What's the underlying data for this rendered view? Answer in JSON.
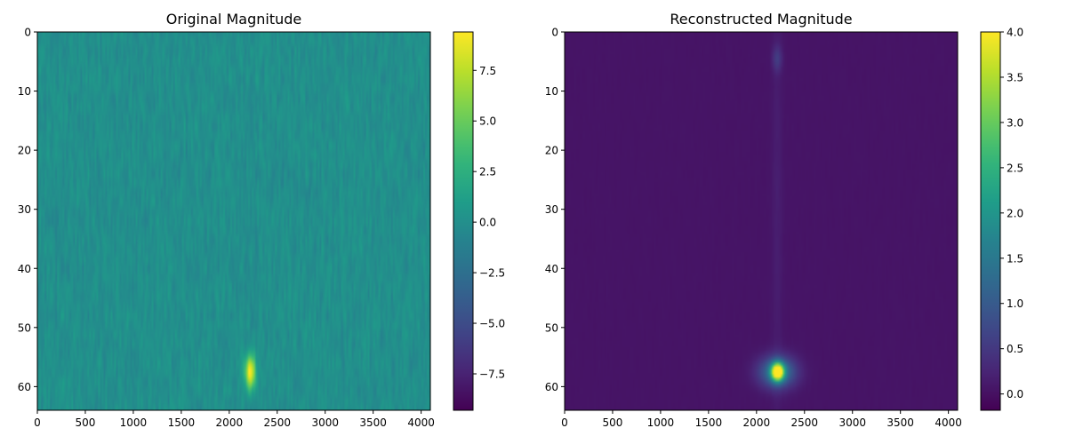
{
  "chart_data": [
    {
      "type": "heatmap",
      "title": "Original Magnitude",
      "xlabel": "",
      "ylabel": "",
      "x_range": [
        0,
        4096
      ],
      "y_range": [
        0,
        64
      ],
      "y_inverted": true,
      "x_ticks": [
        0,
        500,
        1000,
        1500,
        2000,
        2500,
        3000,
        3500,
        4000
      ],
      "y_ticks": [
        0,
        10,
        20,
        30,
        40,
        50,
        60
      ],
      "colormap": "viridis",
      "color_range": [
        -9.3,
        9.4
      ],
      "colorbar_ticks": [
        {
          "value": -7.5,
          "label": "−7.5"
        },
        {
          "value": -5.0,
          "label": "−5.0"
        },
        {
          "value": -2.5,
          "label": "−2.5"
        },
        {
          "value": 0.0,
          "label": "0.0"
        },
        {
          "value": 2.5,
          "label": "2.5"
        },
        {
          "value": 5.0,
          "label": "5.0"
        },
        {
          "value": 7.5,
          "label": "7.5"
        }
      ],
      "background_level": 0.0,
      "noise_amplitude": 1.2,
      "features": [
        {
          "x": 2220,
          "y": 57.5,
          "peak": 9.4,
          "width_x": 40,
          "width_y": 2.0
        }
      ]
    },
    {
      "type": "heatmap",
      "title": "Reconstructed Magnitude",
      "xlabel": "",
      "ylabel": "",
      "x_range": [
        0,
        4096
      ],
      "y_range": [
        0,
        64
      ],
      "y_inverted": true,
      "x_ticks": [
        0,
        500,
        1000,
        1500,
        2000,
        2500,
        3000,
        3500,
        4000
      ],
      "y_ticks": [
        0,
        10,
        20,
        30,
        40,
        50,
        60
      ],
      "colormap": "viridis",
      "color_range": [
        -0.18,
        4.0
      ],
      "colorbar_ticks": [
        {
          "value": 0.0,
          "label": "0.0"
        },
        {
          "value": 0.5,
          "label": "0.5"
        },
        {
          "value": 1.0,
          "label": "1.0"
        },
        {
          "value": 1.5,
          "label": "1.5"
        },
        {
          "value": 2.0,
          "label": "2.0"
        },
        {
          "value": 2.5,
          "label": "2.5"
        },
        {
          "value": 3.0,
          "label": "3.0"
        },
        {
          "value": 3.5,
          "label": "3.5"
        },
        {
          "value": 4.0,
          "label": "4.0"
        }
      ],
      "background_level": 0.05,
      "noise_amplitude": 0.02,
      "features": [
        {
          "x": 2220,
          "y": 57.5,
          "peak": 4.0,
          "width_x": 45,
          "width_y": 1.0
        },
        {
          "x": 2220,
          "y": 57.5,
          "peak": 1.6,
          "width_x": 130,
          "width_y": 1.8
        },
        {
          "x": 2215,
          "y": 4.5,
          "peak": 0.45,
          "width_x": 35,
          "width_y": 1.5
        },
        {
          "x": 2215,
          "y": 30.0,
          "peak": 0.12,
          "width_x": 40,
          "width_y": 30.0
        }
      ]
    }
  ]
}
